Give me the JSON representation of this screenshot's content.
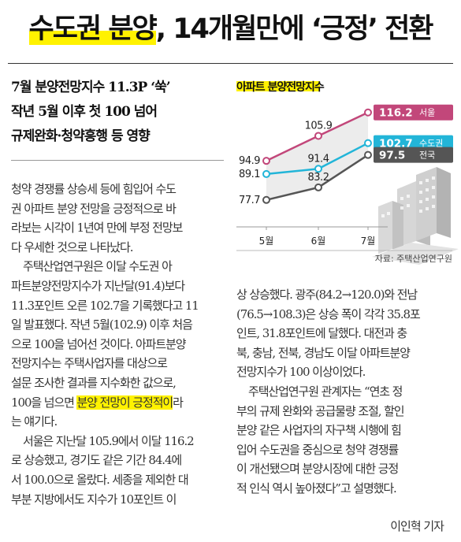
{
  "headline": {
    "part1": "수도권 분양",
    "part2": ", 14개월만에 ‘긍정’ 전환"
  },
  "subheads": [
    "7월 분양전망지수 11.3P ‘쑥’",
    "작년 5월 이후 첫 100 넘어",
    "규제완화·청약흥행 등 영향"
  ],
  "left_column": [
    [
      "청약 경쟁률 상승세 등에 힘입어 수도",
      "권 아파트 분양 전망을 긍정적으로 바",
      "라보는 시각이 1년여 만에 부정 전망보",
      "다 우세한 것으로 나타났다."
    ],
    [
      "주택산업연구원은 이달 수도권 아",
      "파트분양전망지수가 지난달(91.4)보다",
      "11.3포인트 오른 102.7을 기록했다고 11",
      "일 발표했다. 작년 5월(102.9) 이후 처음",
      "으로 100을 넘어선 것이다. 아파트분양",
      "전망지수는 주택사업자를 대상으로",
      "설문 조사한 결과를 지수화한 값으로,"
    ],
    [
      "서울은 지난달 105.9에서 이달 116.2",
      "로 상승했고, 경기도 같은 기간 84.4에",
      "서 100.0으로 올랐다. 세종을 제외한 대",
      "부분 지방에서도 지수가 10포인트 이"
    ]
  ],
  "highlight_line": {
    "before": "100을 넘으면 ",
    "highlight": "분양 전망이 긍정적이",
    "after": "라",
    "next": "는 얘기다."
  },
  "right_column": [
    [
      "상 상승했다. 광주(84.2→120.0)와 전남",
      "(76.5→108.3)은 상승 폭이 각각 35.8포",
      "인트, 31.8포인트에 달했다. 대전과 충",
      "북, 충남, 전북, 경남도 이달 아파트분양",
      "전망지수가 100 이상이었다."
    ],
    [
      "주택산업연구원 관계자는 “연초 정",
      "부의 규제 완화와 공급물량 조절, 할인",
      "분양 같은 사업자의 자구책 시행에 힘",
      "입어 수도권을 중심으로 청약 경쟁률",
      "이 개선됐으며 분양시장에 대한 긍정",
      "적 인식 역시 높아졌다”고 설명했다."
    ]
  ],
  "byline": "이인혁 기자",
  "chart_data": {
    "type": "line",
    "title_highlight": "아파트 분양전망",
    "title_rest": "지수",
    "categories": [
      "5월",
      "6월",
      "7월"
    ],
    "series": [
      {
        "name": "서울",
        "values": [
          94.9,
          105.9,
          116.2
        ],
        "color": "#c2477a"
      },
      {
        "name": "수도권",
        "values": [
          89.1,
          91.4,
          102.7
        ],
        "color": "#22b5d8"
      },
      {
        "name": "전국",
        "values": [
          77.7,
          83.2,
          97.5
        ],
        "color": "#555555"
      }
    ],
    "labels": {
      "서울": [
        "94.9",
        "105.9",
        "116.2"
      ],
      "수도권": [
        "89.1",
        "91.4",
        "102.7"
      ],
      "전국": [
        "77.7",
        "83.2",
        "97.5"
      ]
    },
    "ylim": [
      70,
      122
    ],
    "source": "자료: 주택산업연구원",
    "accent_yellow": "#fff200",
    "band_color": "#ececec"
  }
}
